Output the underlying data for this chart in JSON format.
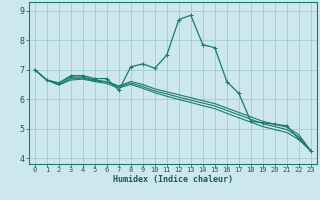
{
  "xlabel": "Humidex (Indice chaleur)",
  "bg_color": "#cce8ec",
  "grid_color": "#aacdd4",
  "line_color": "#1a7a6e",
  "xlim": [
    -0.5,
    23.5
  ],
  "ylim": [
    3.8,
    9.3
  ],
  "yticks": [
    4,
    5,
    6,
    7,
    8,
    9
  ],
  "xticks": [
    0,
    1,
    2,
    3,
    4,
    5,
    6,
    7,
    8,
    9,
    10,
    11,
    12,
    13,
    14,
    15,
    16,
    17,
    18,
    19,
    20,
    21,
    22,
    23
  ],
  "lines": [
    {
      "x": [
        0,
        1,
        2,
        3,
        4,
        5,
        6,
        7,
        8,
        9,
        10,
        11,
        12,
        13,
        14,
        15,
        16,
        17,
        18,
        19,
        20,
        21,
        22,
        23
      ],
      "y": [
        7.0,
        6.65,
        6.55,
        6.8,
        6.8,
        6.7,
        6.7,
        6.3,
        7.1,
        7.2,
        7.05,
        7.5,
        8.7,
        8.85,
        7.85,
        7.75,
        6.6,
        6.2,
        5.25,
        5.2,
        5.15,
        5.1,
        4.65,
        4.25
      ],
      "marker": true
    },
    {
      "x": [
        0,
        1,
        2,
        3,
        4,
        5,
        6,
        7,
        8,
        9,
        10,
        11,
        12,
        13,
        14,
        15,
        16,
        17,
        18,
        19,
        20,
        21,
        22,
        23
      ],
      "y": [
        7.0,
        6.65,
        6.55,
        6.75,
        6.75,
        6.65,
        6.6,
        6.45,
        6.6,
        6.5,
        6.35,
        6.25,
        6.15,
        6.05,
        5.95,
        5.85,
        5.7,
        5.55,
        5.4,
        5.25,
        5.15,
        5.05,
        4.8,
        4.25
      ],
      "marker": false
    },
    {
      "x": [
        0,
        1,
        2,
        3,
        4,
        5,
        6,
        7,
        8,
        9,
        10,
        11,
        12,
        13,
        14,
        15,
        16,
        17,
        18,
        19,
        20,
        21,
        22,
        23
      ],
      "y": [
        7.0,
        6.65,
        6.5,
        6.7,
        6.72,
        6.62,
        6.58,
        6.42,
        6.55,
        6.43,
        6.28,
        6.18,
        6.07,
        5.97,
        5.87,
        5.77,
        5.62,
        5.47,
        5.32,
        5.17,
        5.07,
        4.97,
        4.72,
        4.25
      ],
      "marker": false
    },
    {
      "x": [
        0,
        1,
        2,
        3,
        4,
        5,
        6,
        7,
        8,
        9,
        10,
        11,
        12,
        13,
        14,
        15,
        16,
        17,
        18,
        19,
        20,
        21,
        22,
        23
      ],
      "y": [
        7.0,
        6.65,
        6.48,
        6.65,
        6.68,
        6.6,
        6.53,
        6.38,
        6.5,
        6.37,
        6.22,
        6.1,
        5.99,
        5.89,
        5.78,
        5.68,
        5.52,
        5.37,
        5.22,
        5.07,
        4.97,
        4.87,
        4.63,
        4.25
      ],
      "marker": false
    }
  ]
}
